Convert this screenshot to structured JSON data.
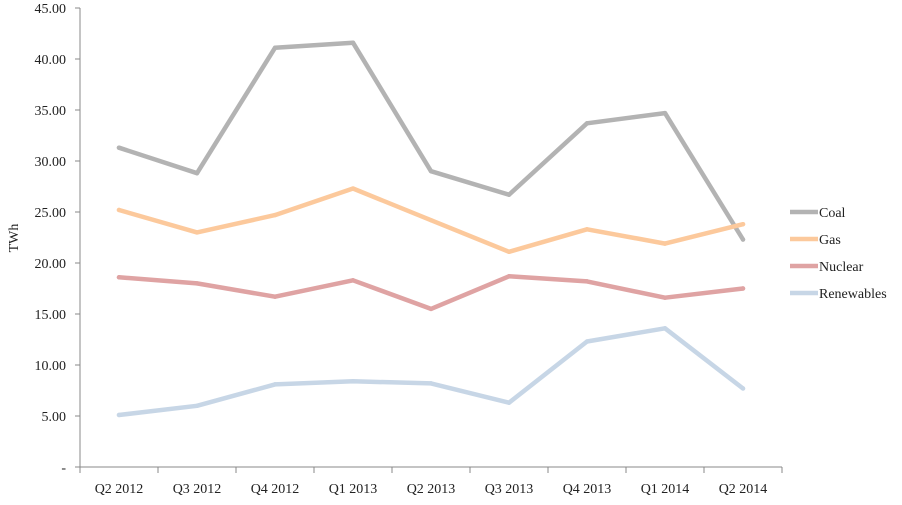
{
  "chart_data": {
    "type": "line",
    "title": "",
    "xlabel": "",
    "ylabel": "TWh",
    "ylim": [
      0,
      45
    ],
    "y_ticks": [
      {
        "value": 0,
        "label": "-"
      },
      {
        "value": 5,
        "label": "5.00"
      },
      {
        "value": 10,
        "label": "10.00"
      },
      {
        "value": 15,
        "label": "15.00"
      },
      {
        "value": 20,
        "label": "20.00"
      },
      {
        "value": 25,
        "label": "25.00"
      },
      {
        "value": 30,
        "label": "30.00"
      },
      {
        "value": 35,
        "label": "35.00"
      },
      {
        "value": 40,
        "label": "40.00"
      },
      {
        "value": 45,
        "label": "45.00"
      }
    ],
    "categories": [
      "Q2 2012",
      "Q3 2012",
      "Q4 2012",
      "Q1 2013",
      "Q2 2013",
      "Q3 2013",
      "Q4 2013",
      "Q1 2014",
      "Q2 2014"
    ],
    "grid": false,
    "legend_position": "right",
    "series": [
      {
        "name": "Coal",
        "color": "#b3b3b3",
        "values": [
          31.3,
          28.8,
          41.1,
          41.6,
          29.0,
          26.7,
          33.7,
          34.7,
          22.3
        ]
      },
      {
        "name": "Gas",
        "color": "#fcc99c",
        "values": [
          25.2,
          23.0,
          24.7,
          27.3,
          24.2,
          21.1,
          23.3,
          21.9,
          23.8
        ]
      },
      {
        "name": "Nuclear",
        "color": "#dfa3a3",
        "values": [
          18.6,
          18.0,
          16.7,
          18.3,
          15.5,
          18.7,
          18.2,
          16.6,
          17.5
        ]
      },
      {
        "name": "Renewables",
        "color": "#c7d6e6",
        "values": [
          5.1,
          6.0,
          8.1,
          8.4,
          8.2,
          6.3,
          12.3,
          13.6,
          7.7
        ]
      }
    ]
  }
}
